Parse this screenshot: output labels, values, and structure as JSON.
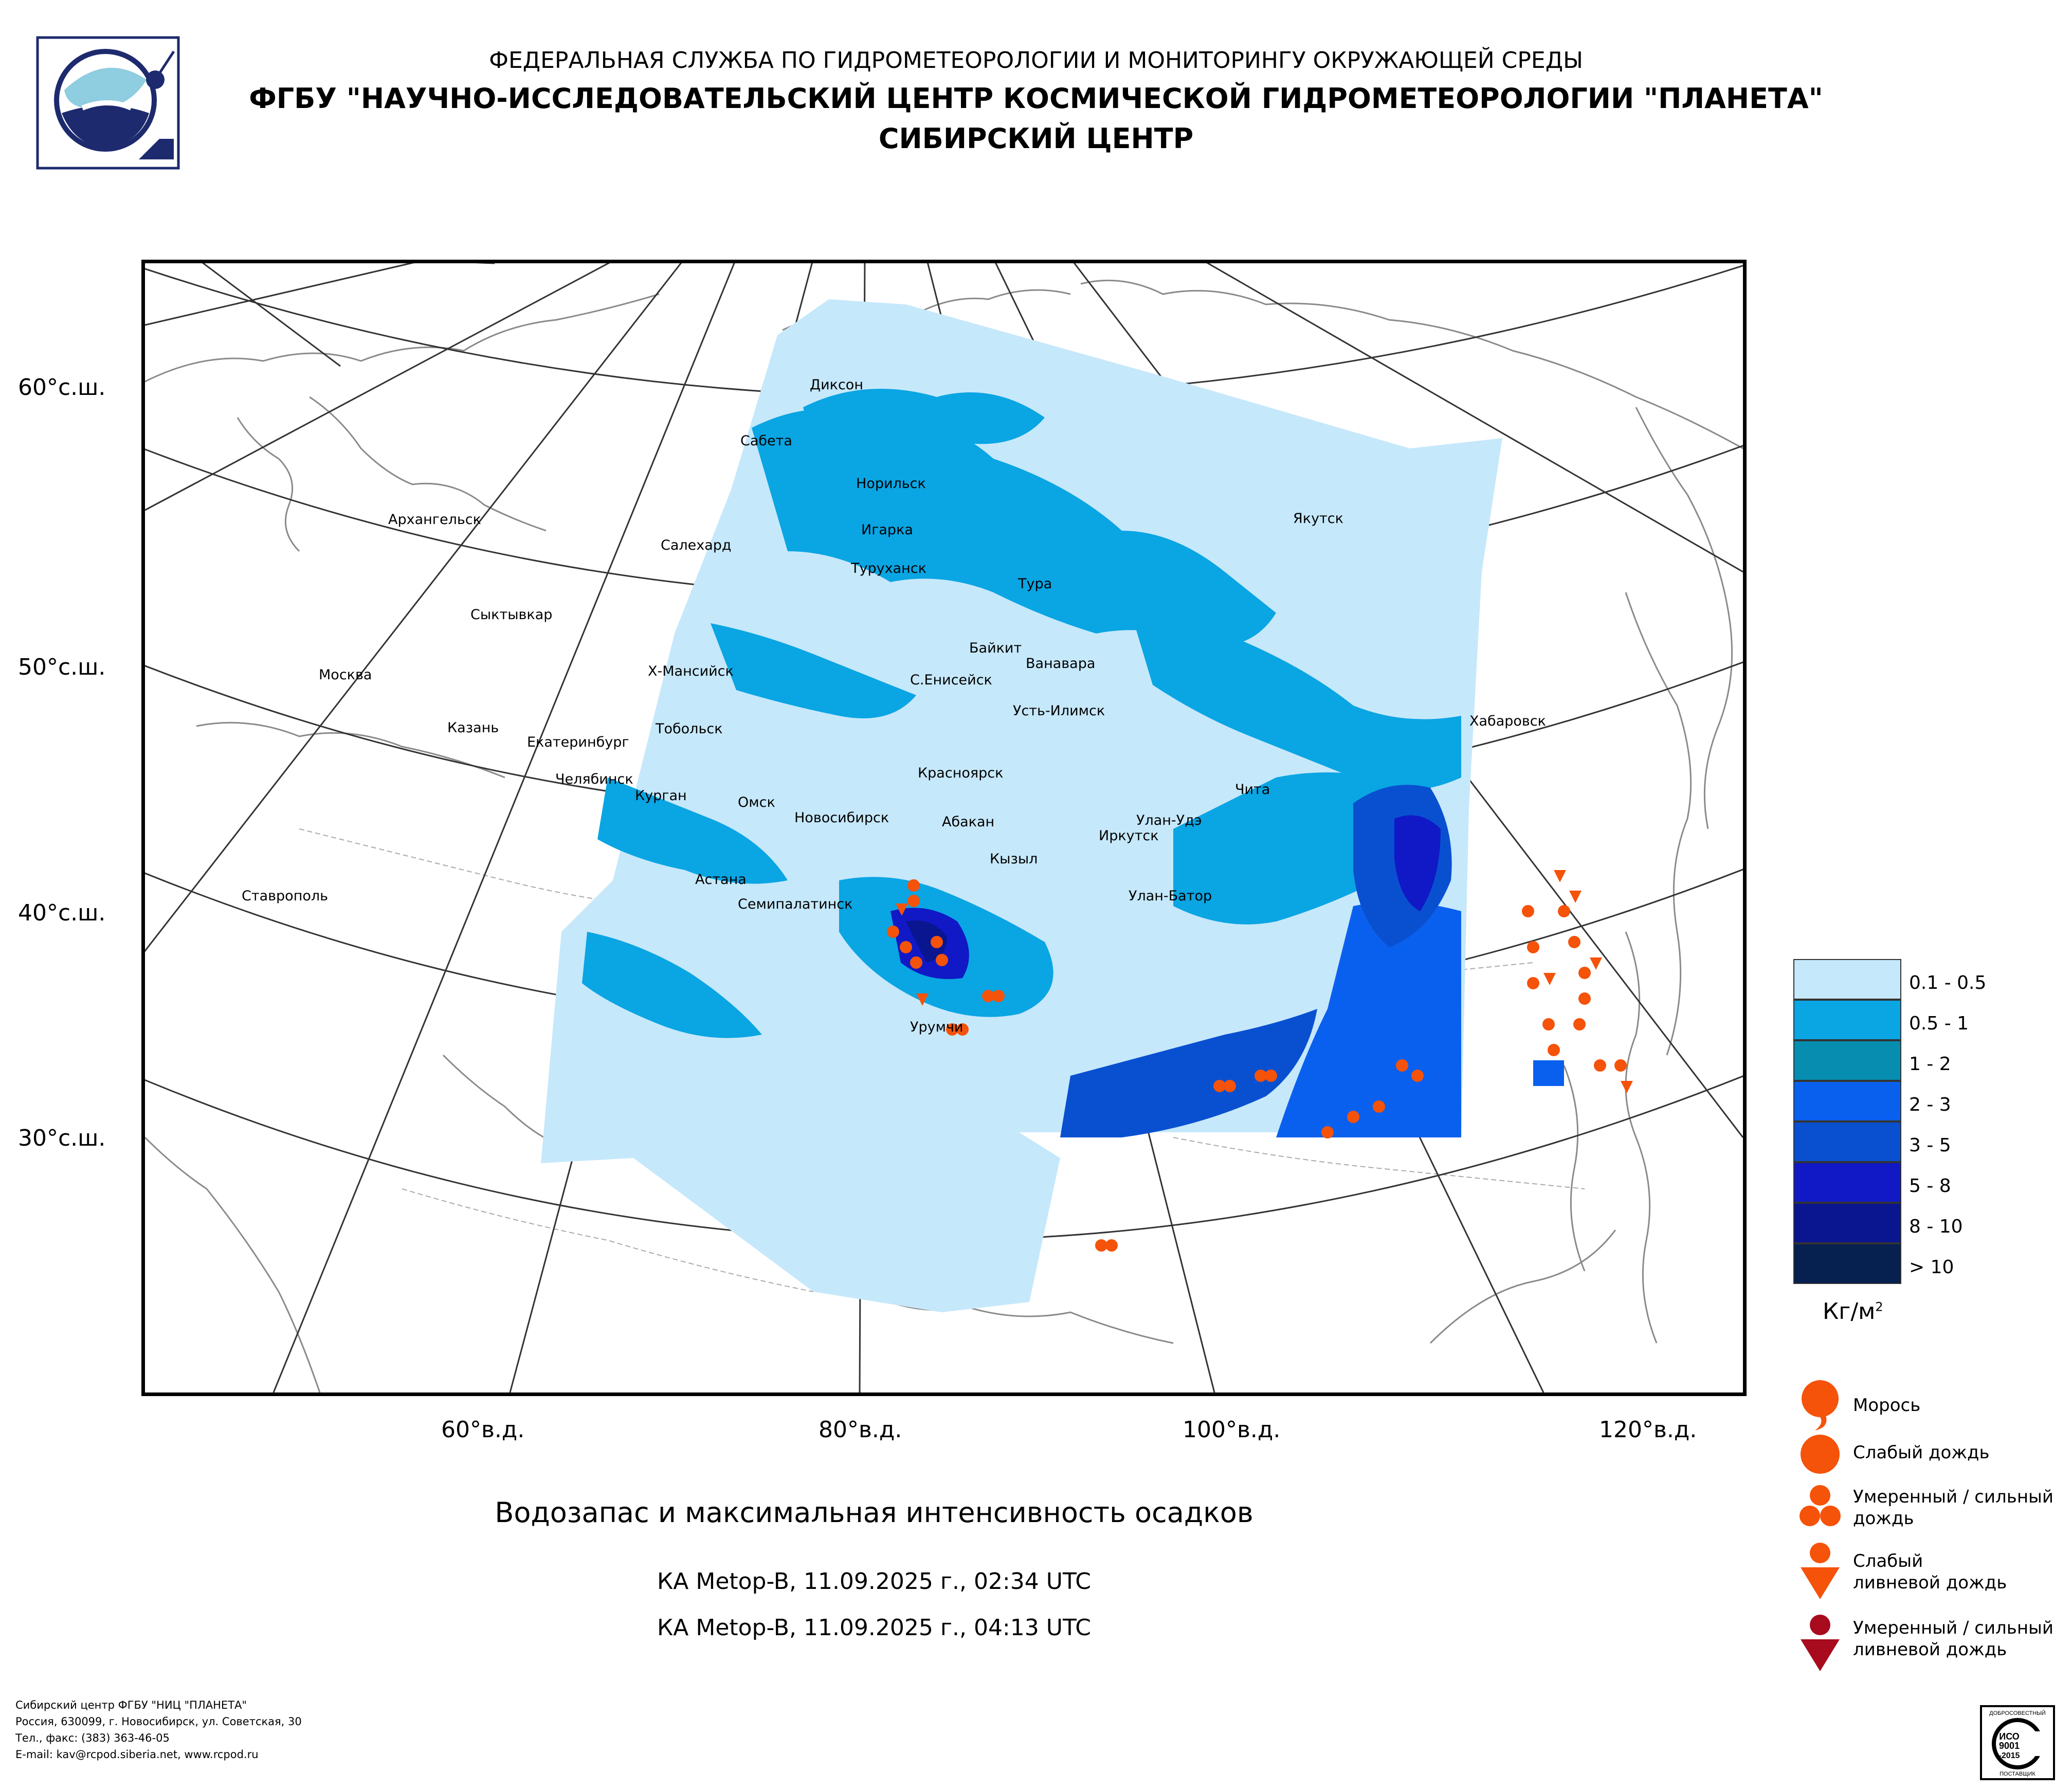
{
  "header": {
    "agency": "ФЕДЕРАЛЬНАЯ СЛУЖБА ПО ГИДРОМЕТЕОРОЛОГИИ И МОНИТОРИНГУ ОКРУЖАЮЩЕЙ СРЕДЫ",
    "org": "ФГБУ \"НАУЧНО-ИССЛЕДОВАТЕЛЬСКИЙ ЦЕНТР КОСМИЧЕСКОЙ ГИДРОМЕТЕОРОЛОГИИ \"ПЛАНЕТА\"",
    "center": "СИБИРСКИЙ ЦЕНТР"
  },
  "map": {
    "lat_labels": [
      "60°с.ш.",
      "50°с.ш.",
      "40°с.ш.",
      "30°с.ш."
    ],
    "lon_labels": [
      "60°в.д.",
      "80°в.д.",
      "100°в.д.",
      "120°в.д."
    ],
    "cities": [
      "Диксон",
      "Сабета",
      "Норильск",
      "Игарка",
      "Салехард",
      "Туруханск",
      "Архангельск",
      "Якутск",
      "Тура",
      "Сыктывкар",
      "Байкит",
      "Ванавара",
      "Москва",
      "Х-Мансийск",
      "С.Енисейск",
      "Усть-Илимск",
      "Хабаровск",
      "Казань",
      "Тобольск",
      "Екатеринбург",
      "Челябинск",
      "Курган",
      "Омск",
      "Красноярск",
      "Новосибирск",
      "Чита",
      "Абакан",
      "Улан-Удэ",
      "Иркутск",
      "Кызыл",
      "Астана",
      "Ставрополь",
      "Семипалатинск",
      "Улан-Батор",
      "Урумчи"
    ]
  },
  "caption": {
    "title": "Водозапас и максимальная интенсивность осадков",
    "sat1": "КА Metop-B, 11.09.2025 г., 02:34 UTC",
    "sat2": "КА Metop-B, 11.09.2025 г., 04:13 UTC"
  },
  "legend": {
    "units_base": "Кг/м",
    "units_sup": "2",
    "bins": [
      {
        "label": "0.1 - 0.5",
        "color": "#c6e8fb"
      },
      {
        "label": "0.5 - 1",
        "color": "#0aa5e3"
      },
      {
        "label": "1 - 2",
        "color": "#078db0"
      },
      {
        "label": "2 - 3",
        "color": "#0a60ee"
      },
      {
        "label": "3 - 5",
        "color": "#0950d0"
      },
      {
        "label": "5 - 8",
        "color": "#1019c5"
      },
      {
        "label": "8 - 10",
        "color": "#0a1590"
      },
      {
        "label": "> 10",
        "color": "#062050"
      }
    ],
    "precip": {
      "drizzle": "Морось",
      "light_rain": "Слабый дождь",
      "moderate_rain": "Умеренный / сильный дождь",
      "light_shower": "Слабый ливневой дождь",
      "heavy_shower": "Умеренный / сильный ливневой дождь"
    },
    "precip_colors": {
      "orange": "#f5520a",
      "dark_red": "#a80a1e"
    }
  },
  "footer": {
    "line1": "Сибирский центр ФГБУ \"НИЦ \"ПЛАНЕТА\"",
    "line2": "Россия, 630099, г. Новосибирск, ул. Советская, 30",
    "line3": "Тел., факс: (383) 363-46-05",
    "line4": "E-mail: kav@rcpod.siberia.net, www.rcpod.ru"
  },
  "iso": {
    "top": "ДОБРОСОВЕСТНЫЙ",
    "line1": "ИСО",
    "line2": "9001",
    "line3": "-2015",
    "bottom": "ПОСТАВЩИК"
  }
}
